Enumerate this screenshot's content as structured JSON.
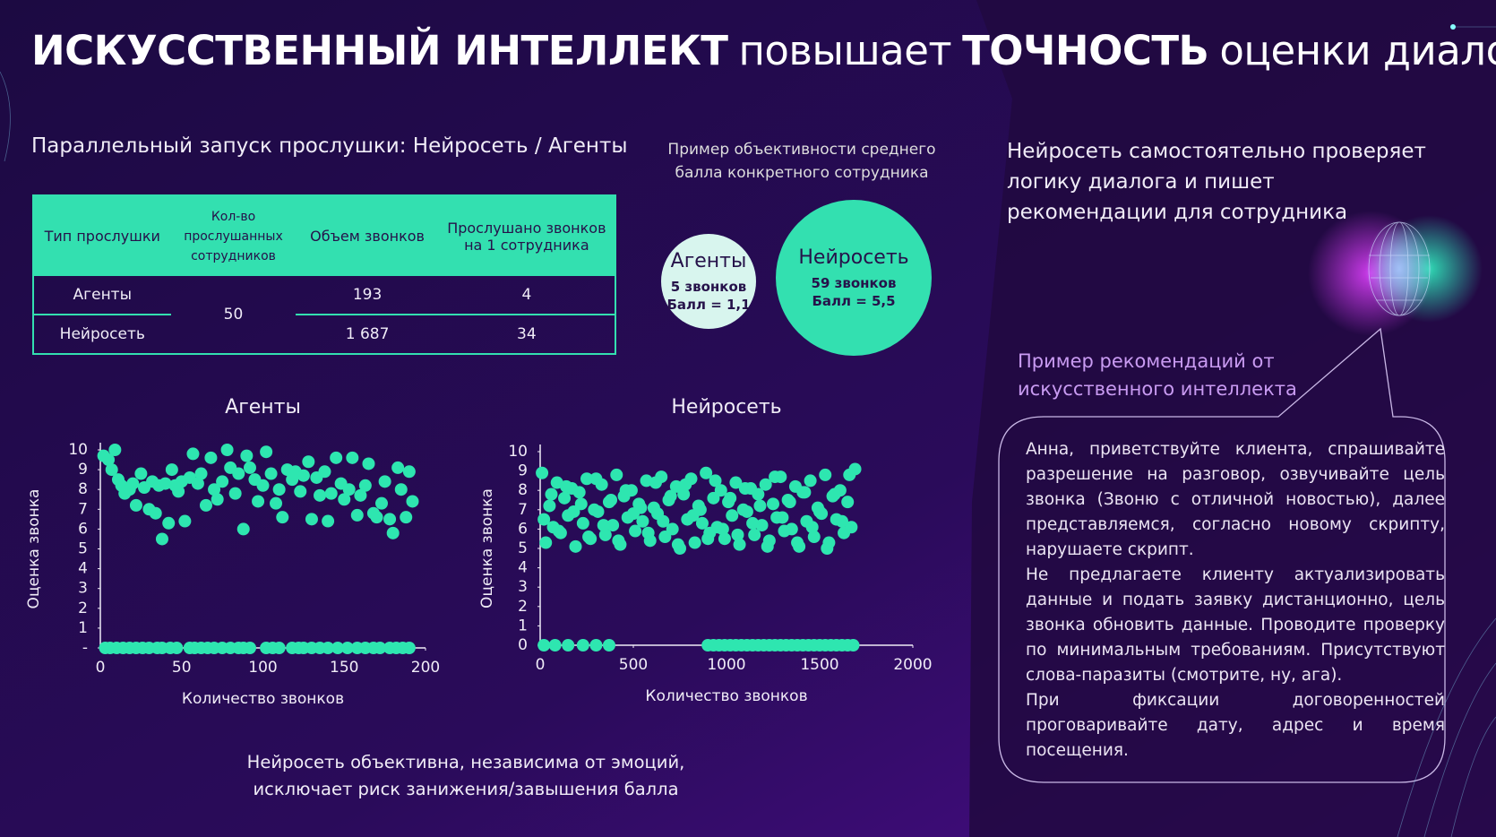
{
  "title": [
    "ИСКУССТВЕННЫЙ ИНТЕЛЛЕКТ",
    "повышает",
    "ТОЧНОСТЬ",
    "оценки диалогов"
  ],
  "table": {
    "caption": "Параллельный запуск  прослушки: Нейросеть / Агенты",
    "headers": [
      "Тип прослушки",
      "Кол-во прослушанных сотрудников",
      "Объем звонков",
      "Прослушано звонков на 1 сотрудника"
    ],
    "rows": [
      [
        "Агенты",
        "193",
        "4"
      ],
      [
        "Нейросеть",
        "1 687",
        "34"
      ]
    ],
    "shared_count": "50"
  },
  "comparison": {
    "caption": "Пример объективности среднего балла конкретного сотрудника",
    "circles": [
      {
        "title": "Агенты",
        "lines": [
          "5 звонков",
          "Балл = 1,1"
        ]
      },
      {
        "title": "Нейросеть",
        "lines": [
          "59 звонков",
          "Балл = 5,5"
        ]
      }
    ]
  },
  "ai": {
    "heading": "Нейросеть самостоятельно проверяет логику диалога и пишет рекомендации для сотрудника",
    "label": "Пример рекомендаций от искусственного интеллекта",
    "recommendation": [
      "Анна, приветствуйте клиента, спрашивайте разрешение на разговор, озвучивайте цель звонка (Звоню с отличной новостью), далее представляемся, согласно новому скрипту, нарушаете скрипт.",
      "Не предлагаете клиенту актуализировать данные и подать заявку дистанционно, цель звонка обновить данные.  Проводите проверку по минимальным требованиям. Присутствуют слова-паразиты (смотрите, ну, ага).",
      "При фиксации договоренностей проговаривайте дату, адрес и время посещения."
    ]
  },
  "footer": [
    "Нейросеть объективна, независима от эмоций,",
    "исключает риск занижения/завышения балла"
  ],
  "chart_data": [
    {
      "type": "scatter",
      "title": "Агенты",
      "xlabel": "Количество звонков",
      "ylabel": "Оценка звонка",
      "color": "#2ee6b0",
      "xlim": [
        0,
        200
      ],
      "xticks": [
        0,
        50,
        100,
        150,
        200
      ],
      "ylim": [
        0,
        10
      ],
      "yticks": [
        {
          "value": 0,
          "label": "-"
        },
        1,
        2,
        3,
        4,
        5,
        6,
        7,
        8,
        9,
        10
      ],
      "x": [
        2,
        5,
        7,
        9,
        11,
        13,
        15,
        18,
        20,
        22,
        25,
        27,
        30,
        32,
        34,
        36,
        38,
        40,
        42,
        44,
        46,
        48,
        50,
        52,
        55,
        57,
        60,
        62,
        65,
        68,
        70,
        72,
        75,
        78,
        80,
        83,
        85,
        88,
        90,
        92,
        95,
        97,
        100,
        102,
        105,
        108,
        110,
        112,
        115,
        118,
        120,
        123,
        125,
        128,
        130,
        133,
        135,
        138,
        140,
        142,
        145,
        148,
        150,
        153,
        155,
        158,
        160,
        163,
        165,
        168,
        170,
        173,
        175,
        178,
        180,
        183,
        185,
        188,
        190,
        192,
        3,
        6,
        10,
        14,
        18,
        22,
        26,
        30,
        35,
        38,
        43,
        47,
        55,
        58,
        62,
        66,
        70,
        75,
        80,
        85,
        88,
        92,
        102,
        106,
        110,
        118,
        122,
        125,
        130,
        135,
        140,
        146,
        152,
        158,
        163,
        168,
        172,
        178,
        182,
        186,
        190
      ],
      "values": [
        9.7,
        9.5,
        9.0,
        10,
        8.5,
        8.2,
        7.8,
        8.0,
        8.3,
        7.2,
        8.8,
        8.1,
        7.0,
        8.4,
        6.8,
        8.2,
        5.5,
        8.3,
        6.3,
        9.0,
        8.2,
        7.9,
        8.4,
        6.4,
        8.6,
        9.8,
        8.3,
        8.8,
        7.2,
        9.6,
        8.0,
        7.5,
        8.4,
        10.0,
        9.1,
        7.8,
        8.8,
        6.0,
        9.7,
        9.1,
        8.5,
        7.4,
        8.2,
        9.9,
        8.8,
        7.3,
        8.0,
        6.6,
        9.0,
        8.5,
        8.9,
        7.9,
        8.7,
        9.4,
        6.5,
        8.6,
        7.7,
        8.9,
        6.4,
        7.8,
        9.6,
        8.3,
        7.5,
        8.0,
        9.6,
        6.7,
        7.7,
        8.2,
        9.3,
        6.8,
        6.6,
        7.3,
        8.4,
        6.5,
        5.8,
        9.1,
        8.0,
        6.6,
        8.9,
        7.4,
        0,
        0,
        0,
        0,
        0,
        0,
        0,
        0,
        0,
        0,
        0,
        0,
        0,
        0,
        0,
        0,
        0,
        0,
        0,
        0,
        0,
        0,
        0,
        0,
        0,
        0,
        0,
        0,
        0,
        0,
        0,
        0,
        0,
        0,
        0,
        0,
        0,
        0,
        0,
        0,
        0
      ]
    },
    {
      "type": "scatter",
      "title": "Нейросеть",
      "xlabel": "Количество звонков",
      "ylabel": "Оценка звонка",
      "color": "#2ee6b0",
      "xlim": [
        0,
        2000
      ],
      "xticks": [
        0,
        500,
        1000,
        1500,
        2000
      ],
      "ylim": [
        0,
        10
      ],
      "yticks": [
        0,
        1,
        2,
        3,
        4,
        5,
        6,
        7,
        8,
        9,
        10
      ],
      "x": [
        10,
        30,
        50,
        70,
        90,
        110,
        130,
        150,
        170,
        190,
        210,
        230,
        250,
        270,
        290,
        310,
        330,
        350,
        370,
        390,
        410,
        430,
        450,
        470,
        490,
        510,
        530,
        550,
        570,
        590,
        610,
        630,
        650,
        670,
        690,
        710,
        730,
        750,
        770,
        790,
        810,
        830,
        850,
        870,
        890,
        910,
        930,
        950,
        970,
        990,
        1010,
        1030,
        1050,
        1070,
        1090,
        1110,
        1130,
        1150,
        1170,
        1190,
        1210,
        1230,
        1250,
        1270,
        1290,
        1310,
        1330,
        1350,
        1370,
        1390,
        1410,
        1430,
        1450,
        1470,
        1490,
        1510,
        1530,
        1550,
        1570,
        1590,
        1610,
        1630,
        1650,
        1670,
        1690,
        20,
        60,
        100,
        140,
        180,
        220,
        260,
        300,
        340,
        380,
        420,
        460,
        500,
        540,
        580,
        620,
        660,
        700,
        740,
        780,
        820,
        860,
        900,
        940,
        980,
        1020,
        1060,
        1100,
        1140,
        1180,
        1220,
        1260,
        1300,
        1340,
        1380,
        1420,
        1460,
        1500,
        1540,
        1580,
        1620,
        1660,
        20,
        80,
        150,
        230,
        300,
        370,
        900,
        930,
        960,
        990,
        1020,
        1050,
        1080,
        1110,
        1140,
        1170,
        1200,
        1230,
        1260,
        1290,
        1320,
        1350,
        1380,
        1410,
        1440,
        1470,
        1500,
        1530,
        1560,
        1590,
        1620,
        1650,
        1680
      ],
      "values": [
        8.9,
        5.3,
        7.2,
        6.1,
        8.4,
        5.8,
        7.6,
        6.7,
        8.1,
        5.1,
        7.9,
        6.3,
        8.6,
        5.5,
        7.0,
        6.9,
        8.3,
        5.7,
        7.4,
        6.2,
        8.8,
        5.2,
        7.7,
        6.6,
        8.0,
        5.9,
        7.3,
        6.4,
        8.5,
        5.4,
        7.1,
        6.8,
        8.7,
        5.6,
        7.5,
        6.0,
        8.2,
        5.0,
        7.8,
        6.5,
        8.6,
        5.3,
        7.2,
        6.3,
        8.9,
        5.8,
        7.6,
        6.1,
        8.0,
        5.5,
        7.4,
        6.7,
        8.4,
        5.2,
        7.0,
        6.9,
        8.1,
        5.7,
        7.8,
        6.2,
        8.3,
        5.4,
        7.3,
        6.6,
        8.7,
        5.9,
        7.5,
        6.0,
        8.2,
        5.1,
        7.9,
        6.4,
        8.5,
        5.6,
        7.1,
        6.8,
        8.8,
        5.3,
        7.7,
        6.5,
        8.0,
        5.8,
        7.4,
        6.1,
        9.1,
        6.5,
        7.8,
        5.9,
        8.2,
        6.9,
        7.3,
        5.6,
        8.6,
        6.2,
        7.5,
        5.4,
        8.0,
        6.8,
        7.1,
        5.8,
        8.4,
        6.4,
        7.7,
        5.2,
        8.3,
        6.7,
        7.0,
        5.5,
        8.5,
        6.0,
        7.6,
        5.7,
        8.1,
        6.3,
        7.2,
        5.1,
        8.7,
        6.6,
        7.4,
        5.3,
        7.9,
        6.1,
        6.9,
        5.0,
        7.8,
        6.4,
        8.8,
        0,
        0,
        0,
        0,
        0,
        0,
        0,
        0,
        0,
        0,
        0,
        0,
        0,
        0,
        0,
        0,
        0,
        0,
        0,
        0,
        0,
        0,
        0,
        0,
        0,
        0,
        0,
        0,
        0,
        0,
        0,
        0,
        0
      ]
    }
  ]
}
